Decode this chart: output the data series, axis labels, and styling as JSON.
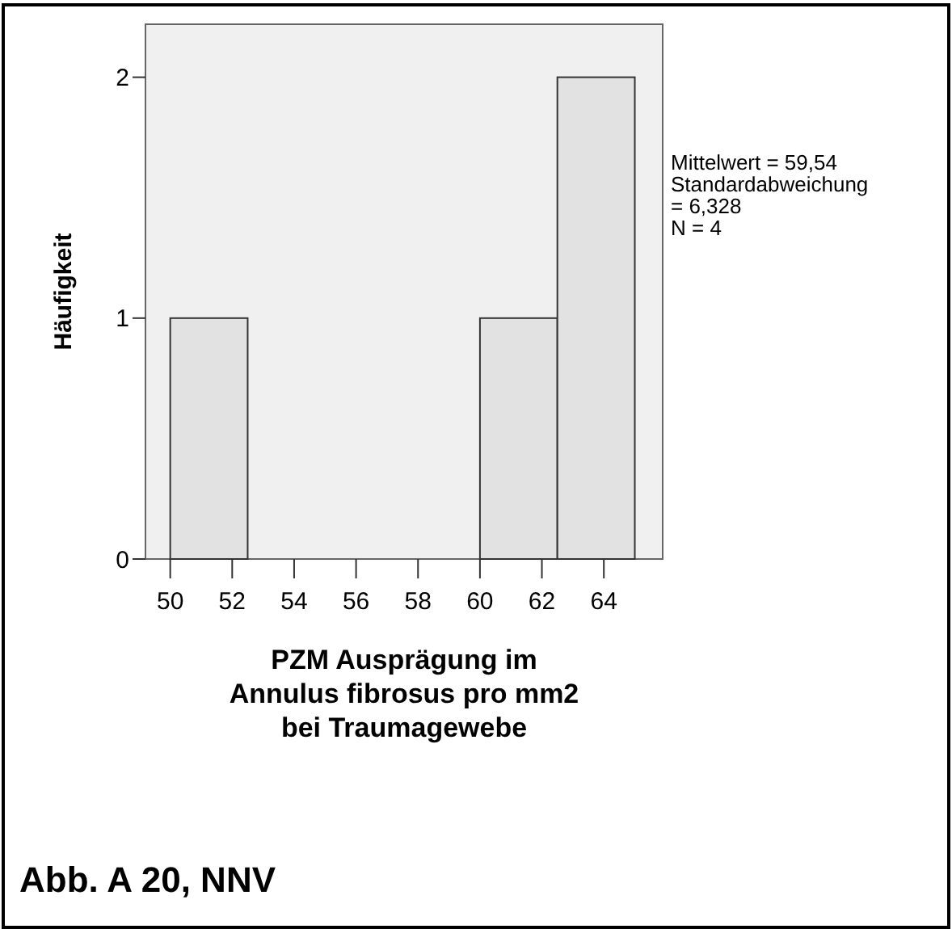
{
  "chart_data": {
    "type": "histogram",
    "title": "Abb. A 20, NNV",
    "xlabel": "PZM Ausprägung im Annulus fibrosus pro mm2 bei Traumagewebe",
    "ylabel": "Häufigkeit",
    "bins": [
      50,
      52.5,
      55,
      57.5,
      60,
      62.5,
      65
    ],
    "values": [
      1,
      0,
      0,
      0,
      1,
      2
    ],
    "color": "#e2e2e2",
    "xlim": [
      49.2,
      65.9
    ],
    "xticks": [
      50,
      52,
      54,
      56,
      58,
      60,
      62,
      64
    ],
    "ylim": [
      0,
      2.22
    ],
    "yticks": [
      0,
      1,
      2
    ],
    "annotations": [
      "Mittelwert = 59,54",
      "Standardabweichung = 6,328",
      "N = 4"
    ],
    "grid": false
  }
}
